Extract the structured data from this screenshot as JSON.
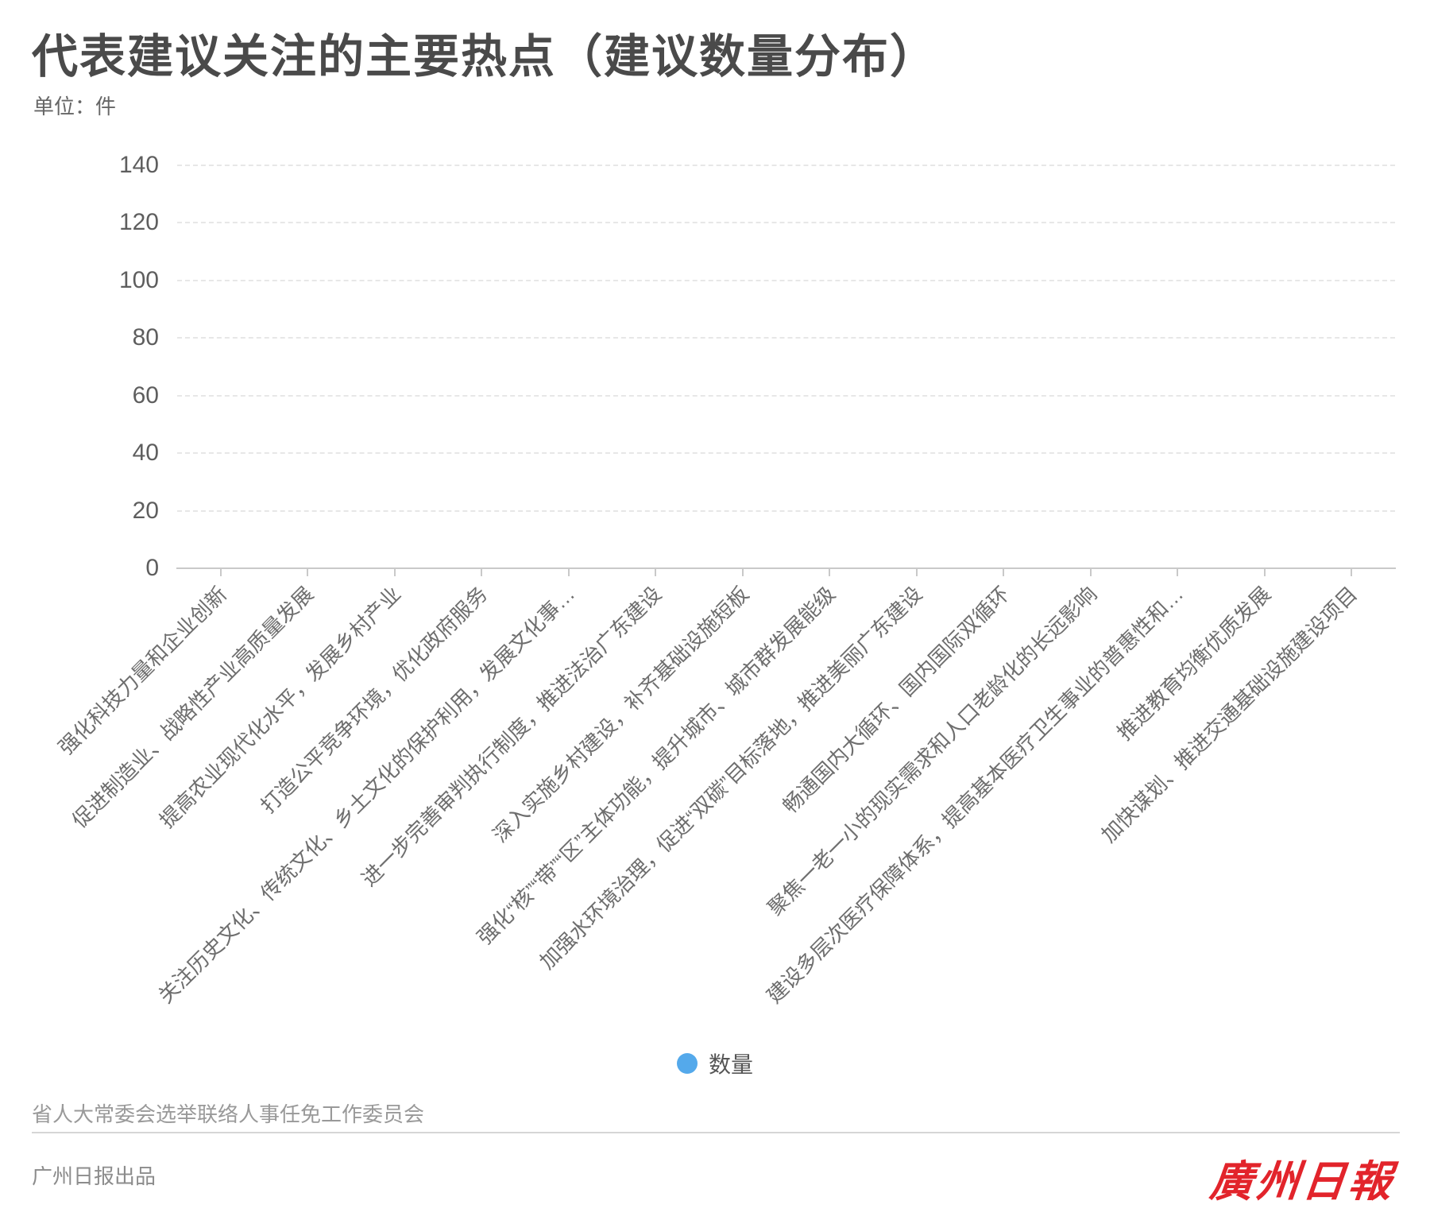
{
  "page": {
    "title": "代表建议关注的主要热点（建议数量分布）",
    "unit": "单位：件"
  },
  "legend": {
    "series_label": "数量",
    "dot_color": "#54a9eb"
  },
  "footer": {
    "source": "省人大常委会选举联络人事任免工作委员会",
    "producer": "广州日报出品",
    "logo": "廣州日報",
    "logo_color": "#e2242b"
  },
  "chart_data": {
    "type": "bar",
    "title": "代表建议关注的主要热点（建议数量分布）",
    "unit_label": "单位：件",
    "categories": [
      "强化科技力量和企业创新",
      "促进制造业、战略性产业高质量发展",
      "提高农业现代化水平，发展乡村产业",
      "打造公平竞争环境，优化政府服务",
      "关注历史文化、传统文化、乡土文化的保护利用，发展文化事…",
      "进一步完善审判执行制度，推进法治广东建设",
      "深入实施乡村建设，补齐基础设施短板",
      "强化“核”“带”“区”主体功能，提升城市、城市群发展能级",
      "加强水环境治理，促进“双碳”目标落地，推进美丽广东建设",
      "畅通国内大循环、国内国际双循环",
      "聚焦一老一小的现实需求和人口老龄化的长远影响",
      "建设多层次医疗保障体系，提高基本医疗卫生事业的普惠性和…",
      "推进教育均衡优质发展",
      "加快谋划、推进交通基础设施建设项目"
    ],
    "series": [
      {
        "name": "数量",
        "color": "#54a9eb",
        "values": [
          null,
          null,
          null,
          null,
          null,
          null,
          null,
          null,
          null,
          null,
          null,
          null,
          null,
          null
        ]
      }
    ],
    "ylim": [
      0,
      140
    ],
    "y_ticks": [
      0,
      20,
      40,
      60,
      80,
      100,
      120,
      140
    ],
    "x_axis_label_rotation_deg": 45,
    "grid": {
      "horizontal_dashed": true
    },
    "legend_position": "bottom-center",
    "bars_rendered": false
  }
}
